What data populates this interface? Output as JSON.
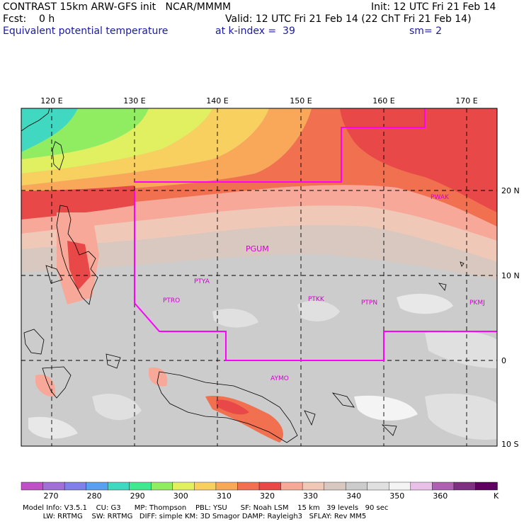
{
  "header": {
    "model_line": "CONTRAST 15km ARW-GFS init   NCAR/MMMM",
    "init_line": "Init: 12 UTC Fri 21 Feb 14",
    "fcst_line": "Fcst:    0 h",
    "valid_line": "Valid: 12 UTC Fri 21 Feb 14 (22 ChT Fri 21 Feb 14)",
    "field_line": "Equivalent potential temperature",
    "level_line": "at k-index =  39",
    "smooth_line": "sm= 2"
  },
  "map": {
    "lon_labels": [
      "120 E",
      "130 E",
      "140 E",
      "150 E",
      "160 E",
      "170 E"
    ],
    "lat_labels": [
      "20 N",
      "10 N",
      "0",
      "10 S"
    ],
    "stations": [
      {
        "id": "PGUM"
      },
      {
        "id": "PTYA"
      },
      {
        "id": "PTRO"
      },
      {
        "id": "PTKK"
      },
      {
        "id": "PTPN"
      },
      {
        "id": "PKMJ"
      },
      {
        "id": "PWAK"
      },
      {
        "id": "AYMO"
      }
    ],
    "colors": {
      "boundary": "#ff00ff",
      "grid": "#000000"
    }
  },
  "colorbar": {
    "unit": "K",
    "tick_labels": [
      "270",
      "280",
      "290",
      "300",
      "310",
      "320",
      "330",
      "340",
      "350",
      "360"
    ],
    "colors": [
      "#c050c8",
      "#a070d8",
      "#8080e8",
      "#5aa0f0",
      "#40d8c0",
      "#40e890",
      "#90ec60",
      "#e0f060",
      "#f8d060",
      "#f8a858",
      "#f07050",
      "#e84848",
      "#f8a898",
      "#f0c8b8",
      "#d8c8c0",
      "#cccccc",
      "#e0e0e0",
      "#f4f4f4",
      "#e8c0e8",
      "#b060b0",
      "#803080",
      "#600060"
    ]
  },
  "footer": {
    "line1": "Model Info: V3.5.1    CU: G3      MP: Thompson    PBL: YSU      SF: Noah LSM    15 km   39 levels   90 sec",
    "line2": "         LW: RRTMG    SW: RRTMG   DIFF: simple KM: 3D Smagor DAMP: Rayleigh3   SFLAY: Rev MM5"
  }
}
